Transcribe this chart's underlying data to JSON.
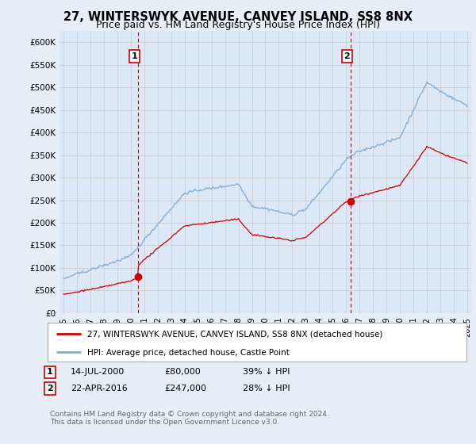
{
  "title": "27, WINTERSWYK AVENUE, CANVEY ISLAND, SS8 8NX",
  "subtitle": "Price paid vs. HM Land Registry's House Price Index (HPI)",
  "ylabel_vals": [
    0,
    50000,
    100000,
    150000,
    200000,
    250000,
    300000,
    350000,
    400000,
    450000,
    500000,
    550000,
    600000
  ],
  "ylabel_labels": [
    "£0",
    "£50K",
    "£100K",
    "£150K",
    "£200K",
    "£250K",
    "£300K",
    "£350K",
    "£400K",
    "£450K",
    "£500K",
    "£550K",
    "£600K"
  ],
  "ylim": [
    0,
    625000
  ],
  "xlim_start": 1994.7,
  "xlim_end": 2025.3,
  "xtick_years": [
    1995,
    1996,
    1997,
    1998,
    1999,
    2000,
    2001,
    2002,
    2003,
    2004,
    2005,
    2006,
    2007,
    2008,
    2009,
    2010,
    2011,
    2012,
    2013,
    2014,
    2015,
    2016,
    2017,
    2018,
    2019,
    2020,
    2021,
    2022,
    2023,
    2024,
    2025
  ],
  "ann1_x": 2000.53,
  "ann1_y": 80000,
  "ann1_label": "1",
  "ann1_date": "14-JUL-2000",
  "ann1_price": "£80,000",
  "ann1_pct": "39% ↓ HPI",
  "ann2_x": 2016.31,
  "ann2_y": 247000,
  "ann2_label": "2",
  "ann2_date": "22-APR-2016",
  "ann2_price": "£247,000",
  "ann2_pct": "28% ↓ HPI",
  "line_red_color": "#cc0000",
  "line_blue_color": "#7aade0",
  "grid_color": "#cccccc",
  "fig_bg": "#e8eef5",
  "plot_bg": "#dce8f5",
  "legend_label_red": "27, WINTERSWYK AVENUE, CANVEY ISLAND, SS8 8NX (detached house)",
  "legend_label_blue": "HPI: Average price, detached house, Castle Point",
  "footer": "Contains HM Land Registry data © Crown copyright and database right 2024.\nThis data is licensed under the Open Government Licence v3.0.",
  "title_fontsize": 10.5,
  "subtitle_fontsize": 9
}
